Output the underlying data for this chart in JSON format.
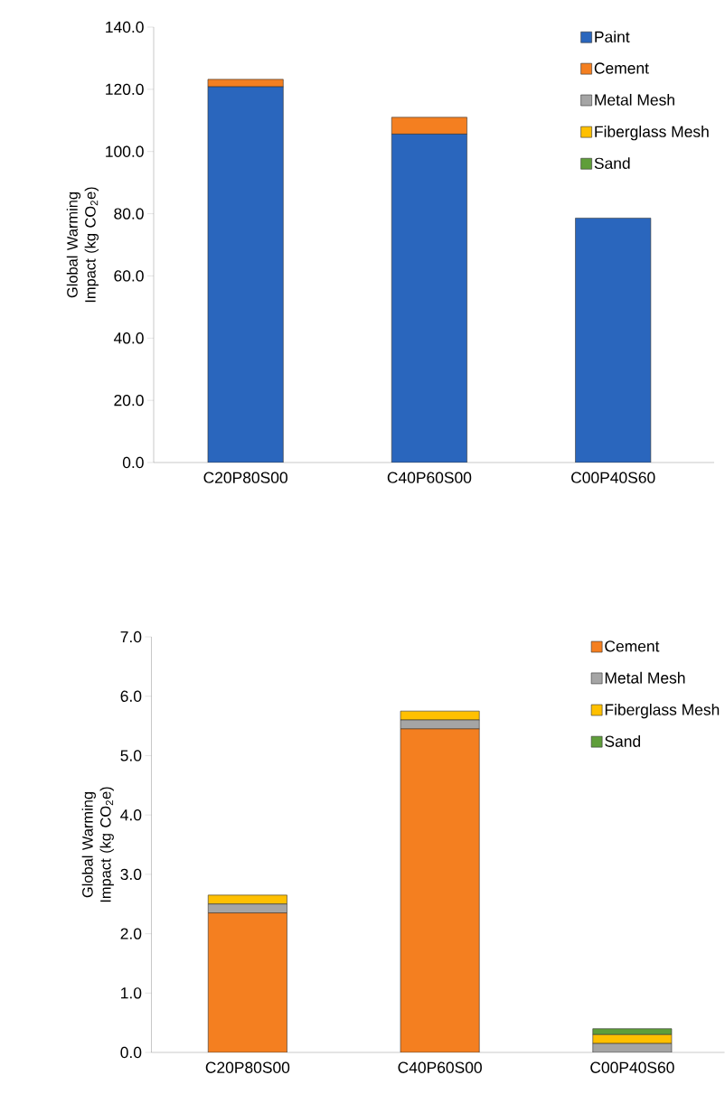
{
  "chart_data": [
    {
      "type": "bar",
      "stacked": true,
      "ylabel": "Global Warming Impact (kg CO$_{2}$e)",
      "categories": [
        "C20P80S00",
        "C40P60S00",
        "C00P40S60"
      ],
      "series": [
        {
          "name": "Paint",
          "color": "#2a66bd",
          "values": [
            120.8,
            105.6,
            78.6
          ]
        },
        {
          "name": "Cement",
          "color": "#f47f20",
          "values": [
            2.4,
            5.4,
            0
          ]
        },
        {
          "name": "Metal Mesh",
          "color": "#a5a5a5",
          "values": [
            null,
            null,
            null
          ]
        },
        {
          "name": "Fiberglass Mesh",
          "color": "#ffc000",
          "values": [
            null,
            null,
            null
          ]
        },
        {
          "name": "Sand",
          "color": "#5f9e3a",
          "values": [
            null,
            null,
            null
          ]
        }
      ],
      "ylim": [
        0,
        140
      ],
      "yticks": [
        {
          "value": 0,
          "label": "0.0"
        },
        {
          "value": 20,
          "label": "20.0"
        },
        {
          "value": 40,
          "label": "40.0"
        },
        {
          "value": 60,
          "label": "60.0"
        },
        {
          "value": 80,
          "label": "80.0"
        },
        {
          "value": 100,
          "label": "100.0"
        },
        {
          "value": 120,
          "label": "120.0"
        },
        {
          "value": 140,
          "label": "140.0"
        }
      ],
      "legend": "top right"
    },
    {
      "type": "bar",
      "stacked": true,
      "ylabel": "Global Warming Impact (kg CO$_{2}$e)",
      "categories": [
        "C20P80S00",
        "C40P60S00",
        "C00P40S60"
      ],
      "series": [
        {
          "name": "Cement",
          "color": "#f47f20",
          "values": [
            2.35,
            5.45,
            0
          ]
        },
        {
          "name": "Metal Mesh",
          "color": "#a5a5a5",
          "values": [
            0.15,
            0.15,
            0.15
          ]
        },
        {
          "name": "Fiberglass Mesh",
          "color": "#ffc000",
          "values": [
            0.15,
            0.15,
            0.15
          ]
        },
        {
          "name": "Sand",
          "color": "#5f9e3a",
          "values": [
            0,
            0,
            0.1
          ]
        }
      ],
      "ylim": [
        0,
        7
      ],
      "yticks": [
        {
          "value": 0,
          "label": "0.0"
        },
        {
          "value": 1,
          "label": "1.0"
        },
        {
          "value": 2,
          "label": "2.0"
        },
        {
          "value": 3,
          "label": "3.0"
        },
        {
          "value": 4,
          "label": "4.0"
        },
        {
          "value": 5,
          "label": "5.0"
        },
        {
          "value": 6,
          "label": "6.0"
        },
        {
          "value": 7,
          "label": "7.0"
        }
      ],
      "legend": "top right"
    }
  ]
}
